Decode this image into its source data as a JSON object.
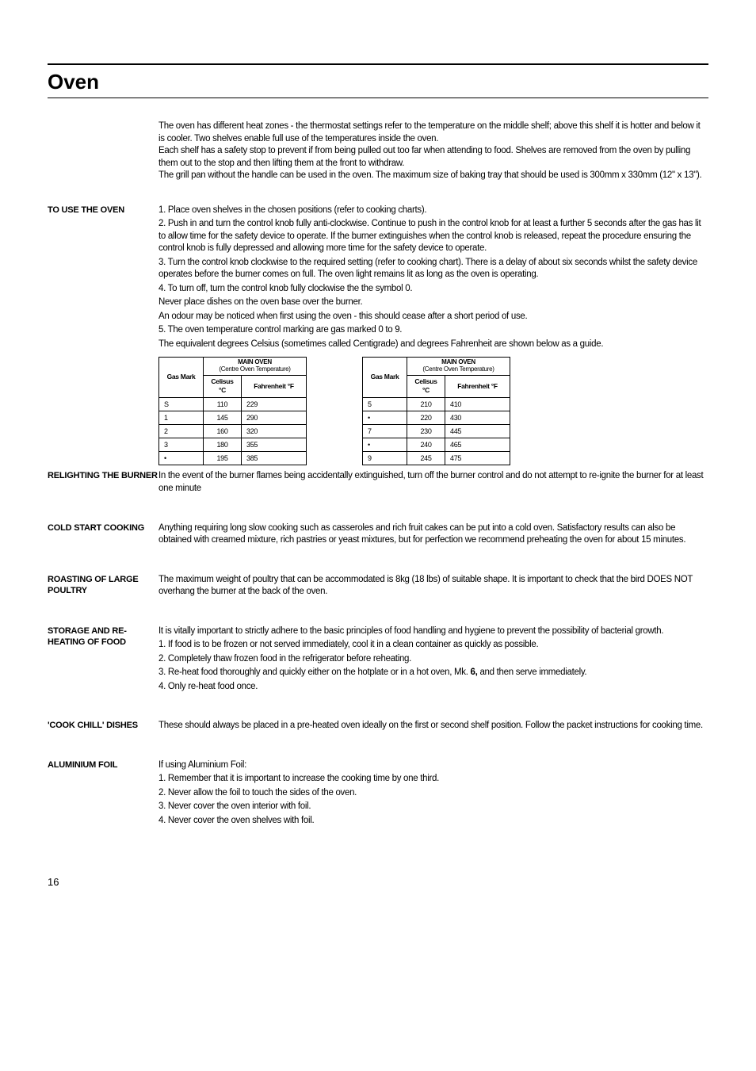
{
  "page": {
    "title": "Oven",
    "number": "16"
  },
  "intro": {
    "p1": "The oven has different heat zones - the thermostat settings refer to the temperature on the middle shelf; above this shelf it is hotter and below it is cooler. Two shelves enable full use of the temperatures inside the oven.",
    "p2": "Each shelf has a safety stop to prevent if from being pulled out too far when attending to food. Shelves are removed from the oven by pulling them out to the stop and then lifting them at the front to withdraw.",
    "p3": "The grill pan without the handle can be used in the oven. The maximum size of baking tray that should be used is 300mm x 330mm (12\" x 13\")."
  },
  "sections": {
    "use_oven": {
      "label": "TO USE THE OVEN",
      "p1": "1. Place oven shelves in the chosen positions (refer to cooking charts).",
      "p2": "2. Push in and turn the control knob fully anti-clockwise. Continue to push in the control knob for at least a further 5 seconds after the gas has lit to allow time for the safety device to operate. If the burner extinguishes when the control knob is released, repeat the procedure ensuring the control knob is fully depressed and allowing more time for the safety device to operate.",
      "p3": "3. Turn the control knob clockwise to the required setting (refer to cooking chart). There is a delay of about six seconds whilst the safety device operates before the burner comes on full. The oven light remains lit as long as the oven is operating.",
      "p4": "4. To turn off, turn the control knob fully clockwise the the symbol 0.",
      "p5": "Never place dishes on the oven base over the burner.",
      "p6": "An odour may be noticed when first using the oven - this should cease after a short period of use.",
      "p7": "5. The oven temperature control marking are gas marked 0 to 9.",
      "p8": "The equivalent degrees Celsius (sometimes called Centigrade) and degrees Fahrenheit are shown below as a guide."
    },
    "relighting": {
      "label": "RELIGHTING THE BURNER",
      "p1": "In the event of the burner flames being accidentally extinguished, turn off the burner control and do not attempt to re-ignite the burner for at least one minute"
    },
    "coldstart": {
      "label": "COLD START COOKING",
      "p1": "Anything requiring long slow cooking such as casseroles and rich fruit cakes can be put into a cold oven. Satisfactory results can also be obtained with creamed mixture, rich pastries or yeast mixtures, but for perfection we recommend preheating the oven for about 15 minutes."
    },
    "roasting": {
      "label": "ROASTING OF LARGE POULTRY",
      "p1": "The maximum weight of poultry that can be accommodated is 8kg (18 lbs) of suitable shape. It is important to check that the bird DOES NOT overhang the burner at the back of the oven."
    },
    "storage": {
      "label": "STORAGE AND RE-HEATING OF FOOD",
      "p1": "It is vitally important to strictly adhere to the basic principles of food handling and hygiene to prevent the possibility of bacterial growth.",
      "p2": "1. If food is to be frozen or not served immediately, cool it in a clean container as quickly as possible.",
      "p3": "2. Completely thaw frozen food in the refrigerator before reheating.",
      "p4a": "3. Re-heat food thoroughly and quickly either on the hotplate or in a hot oven, Mk. ",
      "p4b": "6,",
      "p4c": " and then serve immediately.",
      "p5": "4. Only re-heat food once."
    },
    "cookchill": {
      "label": "'COOK CHILL' DISHES",
      "p1": "These should always be placed in a pre-heated oven ideally on the first or second shelf position. Follow the packet instructions for cooking time."
    },
    "foil": {
      "label": "ALUMINIUM FOIL",
      "p1": "If using Aluminium Foil:",
      "p2": "1. Remember that it is important to increase the cooking time by one third.",
      "p3": "2. Never allow the foil to touch the sides of the oven.",
      "p4": "3. Never cover the oven interior with foil.",
      "p5": "4. Never cover the oven shelves with foil."
    }
  },
  "temp_tables": {
    "header_main": "MAIN OVEN",
    "header_sub": "(Centre Oven Temperature)",
    "col_gas": "Gas Mark",
    "col_c": "Celisus °C",
    "col_f": "Fahrenheit °F",
    "left": [
      {
        "gm": "S",
        "c": "110",
        "f": "229"
      },
      {
        "gm": "1",
        "c": "145",
        "f": "290"
      },
      {
        "gm": "2",
        "c": "160",
        "f": "320"
      },
      {
        "gm": "3",
        "c": "180",
        "f": "355"
      },
      {
        "gm": "•",
        "c": "195",
        "f": "385"
      }
    ],
    "right": [
      {
        "gm": "5",
        "c": "210",
        "f": "410"
      },
      {
        "gm": "•",
        "c": "220",
        "f": "430"
      },
      {
        "gm": "7",
        "c": "230",
        "f": "445"
      },
      {
        "gm": "•",
        "c": "240",
        "f": "465"
      },
      {
        "gm": "9",
        "c": "245",
        "f": "475"
      }
    ]
  }
}
